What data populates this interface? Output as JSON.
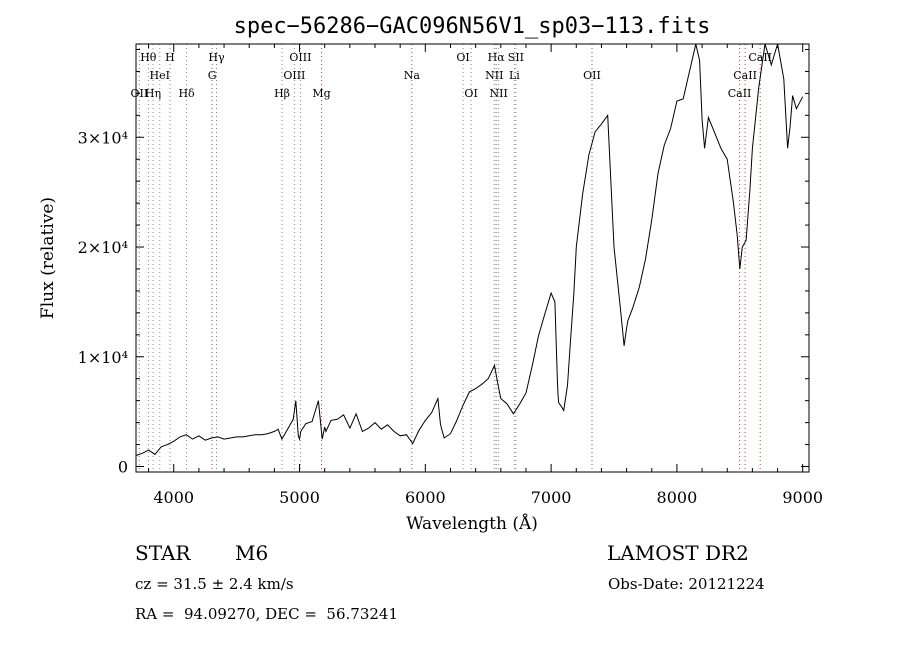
{
  "chart_data": {
    "type": "line",
    "title": "spec−56286−GAC096N56V1_sp03−113.fits",
    "xlabel": "Wavelength (Å)",
    "ylabel": "Flux (relative)",
    "xlim": [
      3700,
      9050
    ],
    "ylim": [
      -500,
      38500
    ],
    "xticks": [
      4000,
      5000,
      6000,
      7000,
      8000,
      9000
    ],
    "yticks": [
      {
        "value": 0,
        "label": "0"
      },
      {
        "value": 10000,
        "label": "1×10⁴"
      },
      {
        "value": 20000,
        "label": "2×10⁴"
      },
      {
        "value": 30000,
        "label": "3×10⁴"
      }
    ],
    "grid": false,
    "lines": [
      {
        "name": "Hθ",
        "x": 3798,
        "row": 0,
        "color": "#888888"
      },
      {
        "name": "H",
        "x": 3970,
        "row": 0,
        "color": "#888888"
      },
      {
        "name": "Hγ",
        "x": 4340,
        "row": 0,
        "color": "#888888"
      },
      {
        "name": "OIII",
        "x": 5007,
        "row": 0,
        "color": "#888888"
      },
      {
        "name": "OI",
        "x": 6300,
        "row": 0,
        "color": "#888888"
      },
      {
        "name": "Hα",
        "x": 6563,
        "row": 0,
        "color": "#c04040"
      },
      {
        "name": "SII",
        "x": 6720,
        "row": 0,
        "color": "#888888"
      },
      {
        "name": "CaII",
        "x": 8662,
        "row": 0,
        "color": "#c04040"
      },
      {
        "name": "HeI",
        "x": 3889,
        "row": 1,
        "color": "#888888"
      },
      {
        "name": "G",
        "x": 4305,
        "row": 1,
        "color": "#c04040"
      },
      {
        "name": "OIII",
        "x": 4959,
        "row": 1,
        "color": "#888888"
      },
      {
        "name": "Na",
        "x": 5893,
        "row": 1,
        "color": "#c04040"
      },
      {
        "name": "NII",
        "x": 6548,
        "row": 1,
        "color": "#888888"
      },
      {
        "name": "Li",
        "x": 6708,
        "row": 1,
        "color": "#888888"
      },
      {
        "name": "OII",
        "x": 7325,
        "row": 1,
        "color": "#c04040"
      },
      {
        "name": "CaII",
        "x": 8542,
        "row": 1,
        "color": "#c04040"
      },
      {
        "name": "OII",
        "x": 3727,
        "row": 2,
        "color": "#888888"
      },
      {
        "name": "Hη",
        "x": 3835,
        "row": 2,
        "color": "#888888"
      },
      {
        "name": "Hδ",
        "x": 4102,
        "row": 2,
        "color": "#888888"
      },
      {
        "name": "Hβ",
        "x": 4861,
        "row": 2,
        "color": "#888888"
      },
      {
        "name": "Mg",
        "x": 5175,
        "row": 2,
        "color": "#c04040"
      },
      {
        "name": "OI",
        "x": 6364,
        "row": 2,
        "color": "#888888"
      },
      {
        "name": "NII",
        "x": 6583,
        "row": 2,
        "color": "#888888"
      },
      {
        "name": "CaII",
        "x": 8498,
        "row": 2,
        "color": "#c04040"
      }
    ],
    "series": [
      {
        "x": [
          3700,
          3750,
          3800,
          3850,
          3900,
          3950,
          4000,
          4050,
          4100,
          4150,
          4200,
          4250,
          4300,
          4350,
          4400,
          4450,
          4500,
          4550,
          4600,
          4650,
          4700,
          4750,
          4800,
          4830,
          4860,
          4900,
          4950,
          4970,
          4990,
          5000,
          5010,
          5050,
          5100,
          5150,
          5180,
          5200,
          5210,
          5250,
          5300,
          5350,
          5400,
          5450,
          5500,
          5550,
          5600,
          5650,
          5700,
          5750,
          5800,
          5850,
          5900,
          5950,
          6000,
          6050,
          6100,
          6120,
          6130,
          6150,
          6200,
          6250,
          6300,
          6350,
          6400,
          6450,
          6500,
          6550,
          6580,
          6600,
          6650,
          6700,
          6750,
          6800,
          6850,
          6900,
          6950,
          7000,
          7030,
          7050,
          7055,
          7060,
          7080,
          7100,
          7130,
          7150,
          7180,
          7200,
          7250,
          7300,
          7350,
          7400,
          7450,
          7500,
          7550,
          7580,
          7600,
          7610,
          7650,
          7700,
          7750,
          7800,
          7850,
          7900,
          7950,
          8000,
          8050,
          8100,
          8150,
          8180,
          8200,
          8220,
          8250,
          8300,
          8350,
          8400,
          8450,
          8480,
          8500,
          8520,
          8550,
          8580,
          8600,
          8650,
          8700,
          8750,
          8800,
          8850,
          8880,
          8900,
          8920,
          8950,
          9000
        ],
        "y": [
          1000,
          1200,
          1500,
          1100,
          1800,
          2000,
          2300,
          2700,
          2900,
          2500,
          2800,
          2400,
          2600,
          2700,
          2500,
          2600,
          2700,
          2700,
          2800,
          2900,
          2900,
          3000,
          3200,
          3400,
          2500,
          3300,
          4300,
          6000,
          2800,
          2500,
          3200,
          3900,
          4100,
          6000,
          2500,
          3600,
          3200,
          4200,
          4300,
          4700,
          3500,
          4800,
          3200,
          3500,
          4000,
          3400,
          3800,
          3200,
          2800,
          2900,
          2100,
          3300,
          4200,
          4900,
          6200,
          3900,
          3400,
          2600,
          3000,
          4200,
          5600,
          6800,
          7100,
          7500,
          8000,
          9200,
          7300,
          6200,
          5700,
          4800,
          5700,
          6700,
          9200,
          11900,
          13900,
          15800,
          15000,
          7800,
          6600,
          5800,
          5500,
          5100,
          7400,
          10800,
          15700,
          20000,
          24800,
          28400,
          30500,
          31200,
          32000,
          20000,
          14500,
          11000,
          12600,
          13300,
          14500,
          16300,
          18900,
          22500,
          26700,
          29300,
          30800,
          33300,
          33500,
          36000,
          39000,
          37000,
          31600,
          29000,
          31800,
          30400,
          29000,
          28000,
          24000,
          21000,
          18000,
          20000,
          20600,
          25200,
          29000,
          34500,
          38900,
          36600,
          39000,
          35300,
          29000,
          31000,
          33800,
          32600,
          33700
        ]
      }
    ]
  },
  "info": {
    "object_class": "STAR",
    "subclass": "M6",
    "survey": "LAMOST DR2",
    "cz": "cz = 31.5 ± 2.4 km/s",
    "obs_date": "Obs-Date: 20121224",
    "coords": "RA =  94.09270, DEC =  56.73241"
  }
}
